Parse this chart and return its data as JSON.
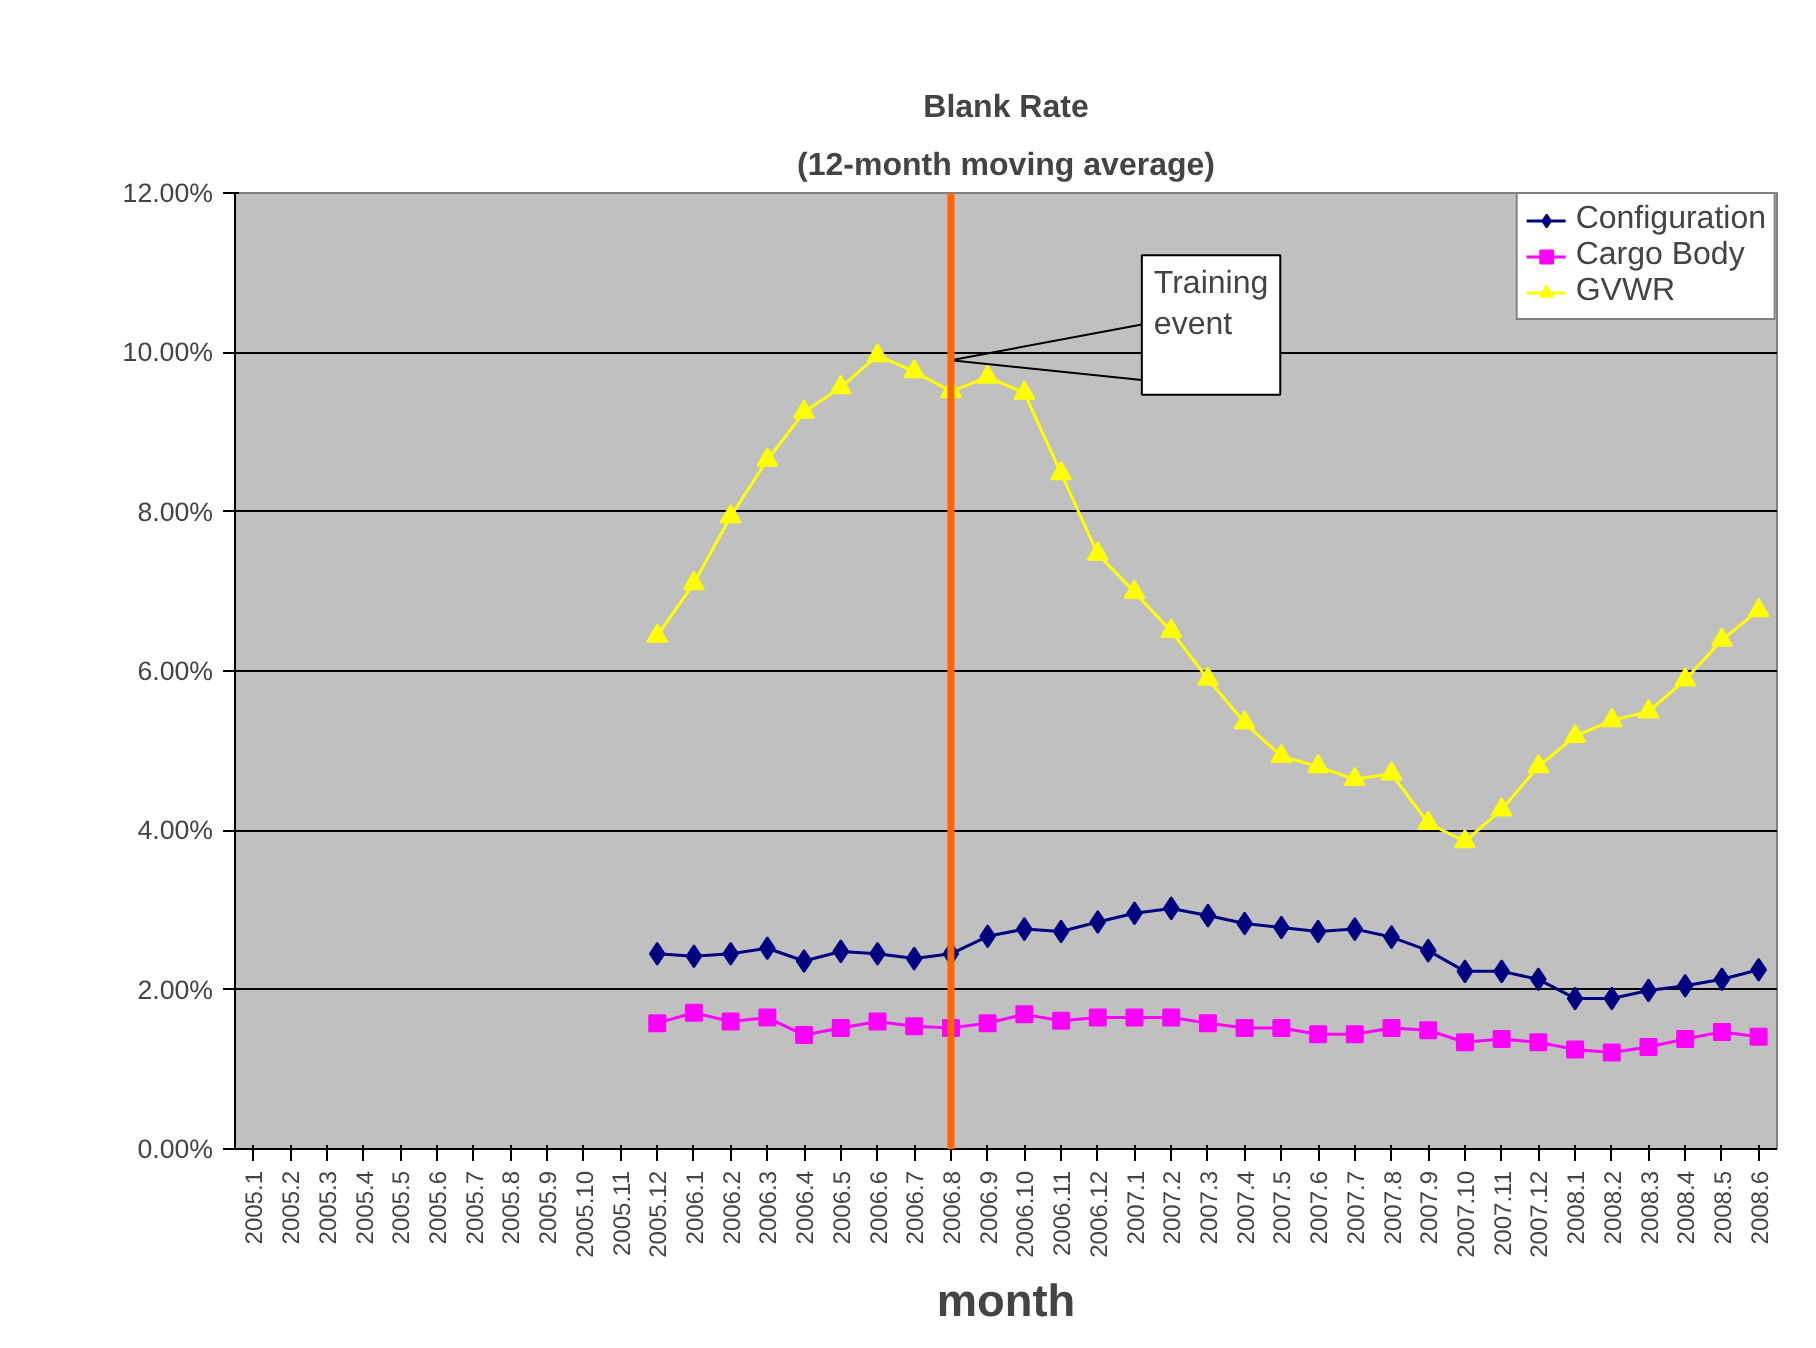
{
  "chart_data": {
    "type": "line",
    "title": "Blank Rate",
    "subtitle": "(12-month moving average)",
    "xlabel": "month",
    "categories": [
      "2005.1",
      "2005.2",
      "2005.3",
      "2005.4",
      "2005.5",
      "2005.6",
      "2005.7",
      "2005.8",
      "2005.9",
      "2005.10",
      "2005.11",
      "2005.12",
      "2006.1",
      "2006.2",
      "2006.3",
      "2006.4",
      "2006.5",
      "2006.6",
      "2006.7",
      "2006.8",
      "2006.9",
      "2006.10",
      "2006.11",
      "2006.12",
      "2007.1",
      "2007.2",
      "2007.3",
      "2007.4",
      "2007.5",
      "2007.6",
      "2007.7",
      "2007.8",
      "2007.9",
      "2007.10",
      "2007.11",
      "2007.12",
      "2008.1",
      "2008.2",
      "2008.3",
      "2008.4",
      "2008.5",
      "2008.6"
    ],
    "series": [
      {
        "name": "Configuration",
        "color": "#000080",
        "marker": "diamond",
        "values": [
          null,
          null,
          null,
          null,
          null,
          null,
          null,
          null,
          null,
          null,
          null,
          2.45,
          2.42,
          2.45,
          2.52,
          2.36,
          2.48,
          2.45,
          2.39,
          2.45,
          2.67,
          2.76,
          2.73,
          2.85,
          2.96,
          3.02,
          2.93,
          2.83,
          2.78,
          2.73,
          2.76,
          2.66,
          2.49,
          2.23,
          2.23,
          2.13,
          1.89,
          1.89,
          1.99,
          2.05,
          2.13,
          2.25
        ]
      },
      {
        "name": "Cargo Body",
        "color": "#ff00ff",
        "marker": "square",
        "values": [
          null,
          null,
          null,
          null,
          null,
          null,
          null,
          null,
          null,
          null,
          null,
          1.58,
          1.71,
          1.6,
          1.65,
          1.43,
          1.52,
          1.6,
          1.54,
          1.52,
          1.58,
          1.69,
          1.61,
          1.65,
          1.65,
          1.65,
          1.58,
          1.52,
          1.52,
          1.44,
          1.44,
          1.52,
          1.49,
          1.34,
          1.38,
          1.34,
          1.25,
          1.21,
          1.28,
          1.38,
          1.47,
          1.41
        ]
      },
      {
        "name": "GVWR",
        "color": "#ffff00",
        "marker": "triangle",
        "values": [
          null,
          null,
          null,
          null,
          null,
          null,
          null,
          null,
          null,
          null,
          null,
          6.44,
          7.1,
          7.94,
          8.65,
          9.25,
          9.56,
          9.96,
          9.76,
          9.51,
          9.69,
          9.49,
          8.48,
          7.47,
          6.99,
          6.5,
          5.9,
          5.35,
          4.93,
          4.8,
          4.64,
          4.71,
          4.09,
          3.86,
          4.26,
          4.8,
          5.18,
          5.38,
          5.49,
          5.89,
          6.39,
          6.76
        ]
      }
    ],
    "ylim": [
      0,
      12
    ],
    "yticks": [
      {
        "value": 0,
        "label": "0.00%"
      },
      {
        "value": 2,
        "label": "2.00%"
      },
      {
        "value": 4,
        "label": "4.00%"
      },
      {
        "value": 6,
        "label": "6.00%"
      },
      {
        "value": 8,
        "label": "8.00%"
      },
      {
        "value": 10,
        "label": "10.00%"
      },
      {
        "value": 12,
        "label": "12.00%"
      }
    ],
    "grid": "y",
    "legend": "top right",
    "line_style": "solid",
    "ref_lines": [
      {
        "axis": "x",
        "value": "2006.8",
        "label": "Training event",
        "color": "#ff6600"
      }
    ]
  }
}
